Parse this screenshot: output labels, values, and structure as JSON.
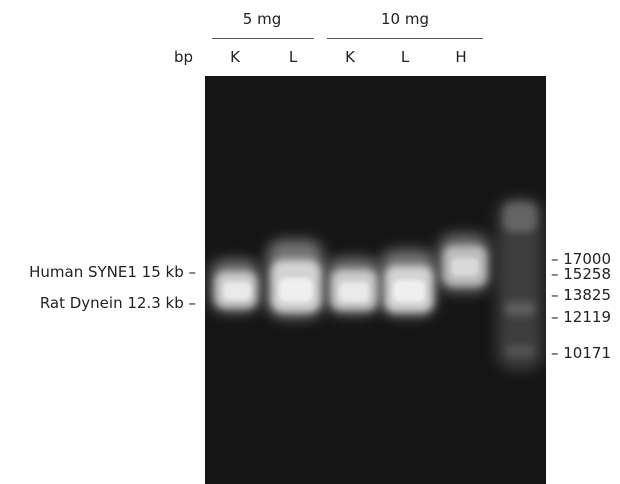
{
  "groups": [
    {
      "label": "5 mg"
    },
    {
      "label": "10 mg"
    }
  ],
  "bp_label": "bp",
  "lanes": [
    "K",
    "L",
    "K",
    "L",
    "H"
  ],
  "left_labels": [
    {
      "text": "Human SYNE1 15 kb –"
    },
    {
      "text": "Rat Dynein 12.3 kb –"
    }
  ],
  "ladder": [
    "– 17000",
    "– 15258",
    "– 13825",
    "– 12119",
    "– 10171"
  ],
  "colors": {
    "gel_background": "#151515",
    "band": "#e8e8e8",
    "text": "#222222"
  }
}
